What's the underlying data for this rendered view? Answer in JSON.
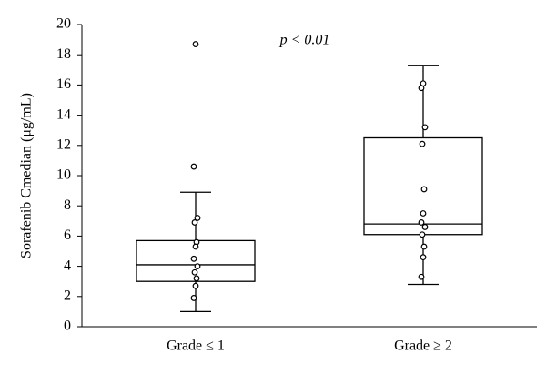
{
  "chart_data": {
    "type": "box",
    "y_label": "Sorafenib Cmedian (μg/mL)",
    "annotation": "p < 0.01",
    "categories": [
      "Grade ≤ 1",
      "Grade ≥ 2"
    ],
    "boxes": [
      {
        "whislo": 1.0,
        "q1": 3.0,
        "med": 4.1,
        "q3": 5.7,
        "whishi": 8.9,
        "points": [
          18.7,
          10.6,
          7.2,
          6.9,
          5.6,
          5.3,
          4.5,
          4.0,
          3.6,
          3.2,
          2.7,
          1.9
        ]
      },
      {
        "whislo": 2.8,
        "q1": 6.1,
        "med": 6.8,
        "q3": 12.5,
        "whishi": 17.3,
        "points": [
          16.1,
          15.8,
          13.2,
          12.1,
          9.1,
          7.5,
          6.9,
          6.6,
          6.1,
          5.3,
          4.6,
          3.3
        ]
      }
    ],
    "color": "#000000",
    "ylim": [
      0,
      20
    ],
    "yticks": [
      0,
      2,
      4,
      6,
      8,
      10,
      12,
      14,
      16,
      18,
      20
    ],
    "grid": false
  }
}
